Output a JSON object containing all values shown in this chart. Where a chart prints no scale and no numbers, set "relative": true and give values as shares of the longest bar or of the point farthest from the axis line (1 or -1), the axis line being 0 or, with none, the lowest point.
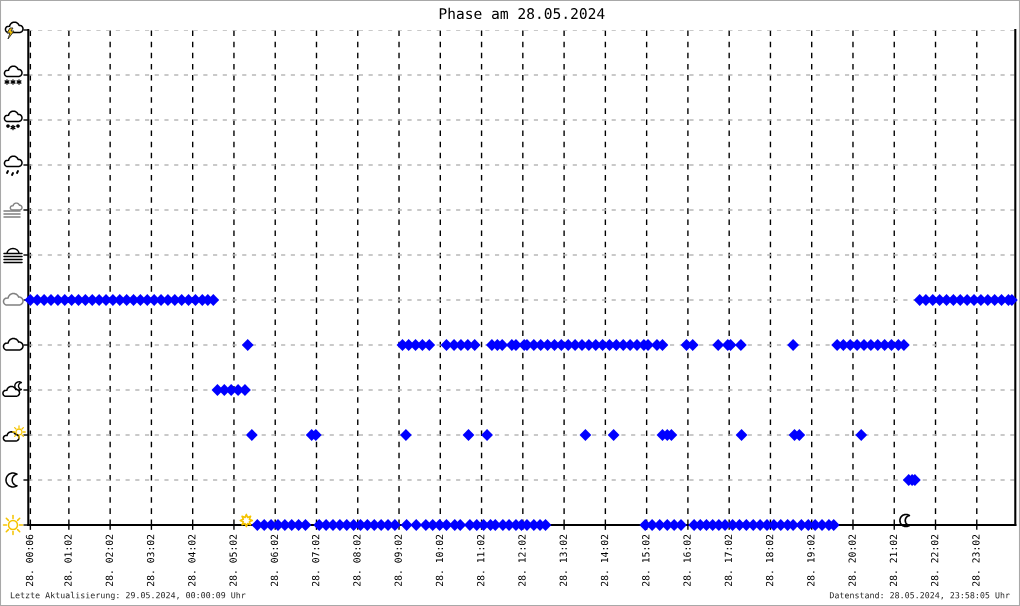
{
  "chart_data": {
    "type": "scatter",
    "title": "Phase am 28.05.2024",
    "relative": true,
    "grid": true,
    "xlim": [
      "2024-05-28T00:03",
      "2024-05-28T23:58"
    ],
    "xticks": [
      {
        "value": "2024-05-28T00:06",
        "label": "28. 00:06"
      },
      {
        "value": "2024-05-28T01:02",
        "label": "28. 01:02"
      },
      {
        "value": "2024-05-28T02:02",
        "label": "28. 02:02"
      },
      {
        "value": "2024-05-28T03:02",
        "label": "28. 03:02"
      },
      {
        "value": "2024-05-28T04:02",
        "label": "28. 04:02"
      },
      {
        "value": "2024-05-28T05:02",
        "label": "28. 05:02"
      },
      {
        "value": "2024-05-28T06:02",
        "label": "28. 06:02"
      },
      {
        "value": "2024-05-28T07:02",
        "label": "28. 07:02"
      },
      {
        "value": "2024-05-28T08:02",
        "label": "28. 08:02"
      },
      {
        "value": "2024-05-28T09:02",
        "label": "28. 09:02"
      },
      {
        "value": "2024-05-28T10:02",
        "label": "28. 10:02"
      },
      {
        "value": "2024-05-28T11:02",
        "label": "28. 11:02"
      },
      {
        "value": "2024-05-28T12:02",
        "label": "28. 12:02"
      },
      {
        "value": "2024-05-28T13:02",
        "label": "28. 13:02"
      },
      {
        "value": "2024-05-28T14:02",
        "label": "28. 14:02"
      },
      {
        "value": "2024-05-28T15:02",
        "label": "28. 15:02"
      },
      {
        "value": "2024-05-28T16:02",
        "label": "28. 16:02"
      },
      {
        "value": "2024-05-28T17:02",
        "label": "28. 17:02"
      },
      {
        "value": "2024-05-28T18:02",
        "label": "28. 18:02"
      },
      {
        "value": "2024-05-28T19:02",
        "label": "28. 19:02"
      },
      {
        "value": "2024-05-28T20:02",
        "label": "28. 20:02"
      },
      {
        "value": "2024-05-28T21:02",
        "label": "28. 21:02"
      },
      {
        "value": "2024-05-28T22:02",
        "label": "28. 22:02"
      },
      {
        "value": "2024-05-28T23:02",
        "label": "28. 23:02"
      }
    ],
    "series": [
      {
        "color": "#0000ff",
        "marker": "diamond",
        "x": [
          "2024-05-28T00:06",
          "2024-05-28T00:16",
          "2024-05-28T00:26",
          "2024-05-28T00:36",
          "2024-05-28T00:46",
          "2024-05-28T00:56",
          "2024-05-28T01:06",
          "2024-05-28T01:16",
          "2024-05-28T01:26",
          "2024-05-28T01:36",
          "2024-05-28T01:46",
          "2024-05-28T01:56",
          "2024-05-28T02:06",
          "2024-05-28T02:16",
          "2024-05-28T02:26",
          "2024-05-28T02:36",
          "2024-05-28T02:46",
          "2024-05-28T02:56",
          "2024-05-28T03:06",
          "2024-05-28T03:16",
          "2024-05-28T03:26",
          "2024-05-28T03:36",
          "2024-05-28T03:46",
          "2024-05-28T03:56",
          "2024-05-28T04:06",
          "2024-05-28T04:16",
          "2024-05-28T04:24",
          "2024-05-28T04:32",
          "2024-05-28T04:38",
          "2024-05-28T04:48",
          "2024-05-28T04:58",
          "2024-05-28T05:08",
          "2024-05-28T05:18",
          "2024-05-28T05:22",
          "2024-05-28T05:28",
          "2024-05-28T05:36",
          "2024-05-28T05:46",
          "2024-05-28T05:56",
          "2024-05-28T06:06",
          "2024-05-28T06:16",
          "2024-05-28T06:26",
          "2024-05-28T06:36",
          "2024-05-28T06:46",
          "2024-05-28T07:06",
          "2024-05-28T07:16",
          "2024-05-28T07:26",
          "2024-05-28T07:36",
          "2024-05-28T07:46",
          "2024-05-28T07:56",
          "2024-05-28T08:06",
          "2024-05-28T08:16",
          "2024-05-28T08:26",
          "2024-05-28T08:36",
          "2024-05-28T08:46",
          "2024-05-28T08:56",
          "2024-05-28T06:55",
          "2024-05-28T07:01",
          "2024-05-28T09:07",
          "2024-05-28T09:12",
          "2024-05-28T09:13",
          "2024-05-28T09:16",
          "2024-05-28T09:26",
          "2024-05-28T09:36",
          "2024-05-28T09:46",
          "2024-05-28T09:27",
          "2024-05-28T09:41",
          "2024-05-28T09:51",
          "2024-05-28T10:01",
          "2024-05-28T10:11",
          "2024-05-28T10:23",
          "2024-05-28T10:31",
          "2024-05-28T10:45",
          "2024-05-28T10:55",
          "2024-05-28T11:05",
          "2024-05-28T11:15",
          "2024-05-28T11:22",
          "2024-05-28T11:33",
          "2024-05-28T11:42",
          "2024-05-28T11:52",
          "2024-05-28T12:00",
          "2024-05-28T12:08",
          "2024-05-28T12:18",
          "2024-05-28T12:27",
          "2024-05-28T12:35",
          "2024-05-28T10:11",
          "2024-05-28T10:22",
          "2024-05-28T10:32",
          "2024-05-28T10:42",
          "2024-05-28T10:52",
          "2024-05-28T11:17",
          "2024-05-28T11:25",
          "2024-05-28T11:32",
          "2024-05-28T11:46",
          "2024-05-28T11:52",
          "2024-05-28T12:04",
          "2024-05-28T12:08",
          "2024-05-28T12:18",
          "2024-05-28T12:28",
          "2024-05-28T10:43",
          "2024-05-28T11:10",
          "2024-05-28T12:38",
          "2024-05-28T12:48",
          "2024-05-28T12:58",
          "2024-05-28T13:08",
          "2024-05-28T13:18",
          "2024-05-28T13:28",
          "2024-05-28T13:38",
          "2024-05-28T13:48",
          "2024-05-28T13:58",
          "2024-05-28T14:08",
          "2024-05-28T14:18",
          "2024-05-28T14:28",
          "2024-05-28T14:38",
          "2024-05-28T14:48",
          "2024-05-28T14:58",
          "2024-05-28T15:04",
          "2024-05-28T15:17",
          "2024-05-28T15:25",
          "2024-05-28T13:33",
          "2024-05-28T14:14",
          "2024-05-28T15:25",
          "2024-05-28T15:32",
          "2024-05-28T15:38",
          "2024-05-28T15:00",
          "2024-05-28T15:10",
          "2024-05-28T15:21",
          "2024-05-28T15:32",
          "2024-05-28T15:42",
          "2024-05-28T15:52",
          "2024-05-28T16:00",
          "2024-05-28T16:09",
          "2024-05-28T16:11",
          "2024-05-28T16:20",
          "2024-05-28T16:29",
          "2024-05-28T16:38",
          "2024-05-28T16:47",
          "2024-05-28T16:56",
          "2024-05-28T16:46",
          "2024-05-28T17:00",
          "2024-05-28T17:04",
          "2024-05-28T17:19",
          "2024-05-28T17:07",
          "2024-05-28T17:17",
          "2024-05-28T17:27",
          "2024-05-28T17:37",
          "2024-05-28T17:47",
          "2024-05-28T17:57",
          "2024-05-28T18:07",
          "2024-05-28T18:17",
          "2024-05-28T18:27",
          "2024-05-28T18:35",
          "2024-05-28T17:20",
          "2024-05-28T18:35",
          "2024-05-28T18:37",
          "2024-05-28T18:44",
          "2024-05-28T18:47",
          "2024-05-28T18:57",
          "2024-05-28T19:07",
          "2024-05-28T19:17",
          "2024-05-28T19:27",
          "2024-05-28T19:34",
          "2024-05-28T19:39",
          "2024-05-28T19:48",
          "2024-05-28T19:58",
          "2024-05-28T20:08",
          "2024-05-28T20:18",
          "2024-05-28T20:28",
          "2024-05-28T20:38",
          "2024-05-28T20:48",
          "2024-05-28T20:58",
          "2024-05-28T21:08",
          "2024-05-28T21:16",
          "2024-05-28T20:14",
          "2024-05-28T21:23",
          "2024-05-28T21:28",
          "2024-05-28T21:32",
          "2024-05-28T21:39",
          "2024-05-28T21:48",
          "2024-05-28T21:58",
          "2024-05-28T22:08",
          "2024-05-28T22:18",
          "2024-05-28T22:28",
          "2024-05-28T22:38",
          "2024-05-28T22:48",
          "2024-05-28T22:58",
          "2024-05-28T23:08",
          "2024-05-28T23:18",
          "2024-05-28T23:28",
          "2024-05-28T23:38",
          "2024-05-28T23:48",
          "2024-05-28T23:53"
        ],
        "values": [
          1,
          1,
          1,
          1,
          1,
          1,
          1,
          1,
          1,
          1,
          1,
          1,
          1,
          1,
          1,
          1,
          1,
          1,
          1,
          1,
          1,
          1,
          1,
          1,
          1,
          1,
          1,
          1,
          0.6,
          0.6,
          0.6,
          0.6,
          0.6,
          0.8,
          0.4,
          0,
          0,
          0,
          0,
          0,
          0,
          0,
          0,
          0,
          0,
          0,
          0,
          0,
          0,
          0,
          0,
          0,
          0,
          0,
          0,
          0.4,
          0.4,
          0.8,
          0.4,
          0,
          0.8,
          0.8,
          0.8,
          0.8,
          0,
          0,
          0,
          0,
          0,
          0,
          0,
          0,
          0,
          0,
          0,
          0,
          0,
          0,
          0,
          0,
          0,
          0,
          0,
          0,
          0.8,
          0.8,
          0.8,
          0.8,
          0.8,
          0.8,
          0.8,
          0.8,
          0.8,
          0.8,
          0.8,
          0.8,
          0.8,
          0.8,
          0.4,
          0.4,
          0.8,
          0.8,
          0.8,
          0.8,
          0.8,
          0.8,
          0.8,
          0.8,
          0.8,
          0.8,
          0.8,
          0.8,
          0.8,
          0.8,
          0.8,
          0.8,
          0.8,
          0.8,
          0.4,
          0.4,
          0.4,
          0.4,
          0.4,
          0,
          0,
          0,
          0,
          0,
          0,
          0.8,
          0.8,
          0,
          0,
          0,
          0,
          0,
          0,
          0.8,
          0.8,
          0.8,
          0.8,
          0,
          0,
          0,
          0,
          0,
          0,
          0,
          0,
          0,
          0,
          0.4,
          0.8,
          0.4,
          0.4,
          0,
          0,
          0,
          0,
          0,
          0,
          0.8,
          0.8,
          0.8,
          0.8,
          0.8,
          0.8,
          0.8,
          0.8,
          0.8,
          0.8,
          0.8,
          0.4,
          0.2,
          0.2,
          0.2,
          1,
          1,
          1,
          1,
          1,
          1,
          1,
          1,
          1,
          1,
          1,
          1,
          1,
          1,
          1
        ]
      },
      {
        "type": "scatter",
        "marker": "star",
        "color": "#f5c400",
        "x": [
          "2024-05-28T05:20"
        ],
        "values": [
          0.02
        ]
      },
      {
        "type": "scatter",
        "color": "#000000",
        "x": [
          "2024-05-28T21:19"
        ],
        "values": [
          0.02
        ]
      }
    ],
    "annotations": [
      "Letzte Aktualisierung: 29.05.2024, 00:00:09 Uhr",
      "Datenstand: 28.05.2024, 23:58:05 Uhr"
    ]
  }
}
